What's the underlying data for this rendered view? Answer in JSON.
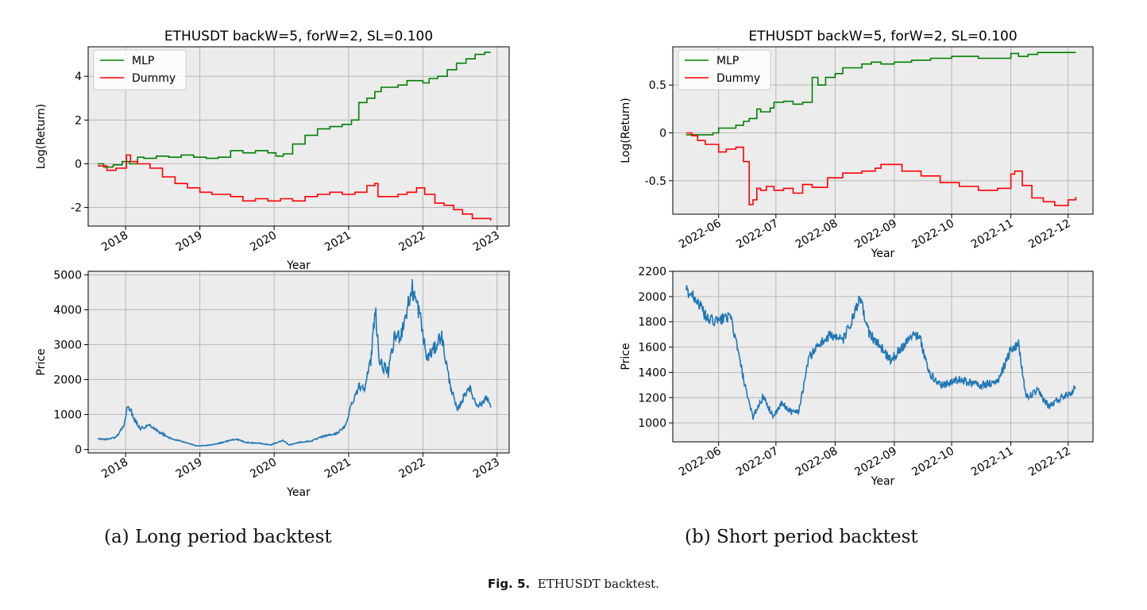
{
  "captions": {
    "a": "(a) Long period backtest",
    "b": "(b) Short period backtest",
    "fig_label": "Fig. 5.",
    "fig_text": "ETHUSDT backtest."
  },
  "colors": {
    "mlp": "#008000",
    "dummy": "#ff0000",
    "price": "#1f77b4",
    "plot_bg": "#ececec",
    "grid": "#b0b0b0"
  },
  "chart_data": [
    {
      "id": "long-return",
      "type": "line",
      "title": "ETHUSDT backW=5, forW=2, SL=0.100",
      "xlabel": "Year",
      "ylabel": "Log(Return)",
      "x_type": "date",
      "xlim": [
        "2017-07-01",
        "2023-03-01"
      ],
      "ylim": [
        -2.85,
        5.35
      ],
      "xticks": [
        [
          "2018-01-01",
          "2018"
        ],
        [
          "2019-01-01",
          "2019"
        ],
        [
          "2020-01-01",
          "2020"
        ],
        [
          "2021-01-01",
          "2021"
        ],
        [
          "2022-01-01",
          "2022"
        ],
        [
          "2023-01-01",
          "2023"
        ]
      ],
      "yticks": [
        -2,
        0,
        2,
        4
      ],
      "grid": true,
      "legend": "top-left",
      "step": true,
      "series": [
        {
          "name": "MLP",
          "color": "#008000",
          "x": [
            "2017-08-17",
            "2017-09-15",
            "2017-11-01",
            "2017-12-15",
            "2018-01-20",
            "2018-03-01",
            "2018-04-01",
            "2018-06-01",
            "2018-08-01",
            "2018-10-01",
            "2018-12-01",
            "2019-02-01",
            "2019-04-01",
            "2019-06-01",
            "2019-08-01",
            "2019-10-01",
            "2019-12-01",
            "2020-01-10",
            "2020-02-15",
            "2020-04-01",
            "2020-06-01",
            "2020-08-01",
            "2020-10-01",
            "2020-12-01",
            "2021-01-15",
            "2021-02-20",
            "2021-04-01",
            "2021-05-10",
            "2021-06-10",
            "2021-07-15",
            "2021-09-01",
            "2021-10-15",
            "2021-12-01",
            "2022-01-01",
            "2022-02-01",
            "2022-03-15",
            "2022-05-01",
            "2022-06-15",
            "2022-08-01",
            "2022-09-15",
            "2022-11-01",
            "2022-11-30"
          ],
          "values": [
            0.0,
            -0.15,
            -0.05,
            0.1,
            0.0,
            0.3,
            0.25,
            0.35,
            0.3,
            0.4,
            0.3,
            0.25,
            0.3,
            0.6,
            0.5,
            0.6,
            0.5,
            0.35,
            0.45,
            0.9,
            1.3,
            1.6,
            1.7,
            1.8,
            2.0,
            2.8,
            3.0,
            3.3,
            3.5,
            3.5,
            3.6,
            3.8,
            3.8,
            3.7,
            3.9,
            4.0,
            4.3,
            4.6,
            4.8,
            5.0,
            5.1,
            5.1
          ]
        },
        {
          "name": "Dummy",
          "color": "#ff0000",
          "x": [
            "2017-08-17",
            "2017-10-01",
            "2017-11-15",
            "2018-01-05",
            "2018-01-25",
            "2018-03-01",
            "2018-05-01",
            "2018-07-01",
            "2018-09-01",
            "2018-11-01",
            "2019-01-01",
            "2019-03-01",
            "2019-06-01",
            "2019-08-01",
            "2019-10-01",
            "2019-12-01",
            "2020-02-01",
            "2020-04-01",
            "2020-06-01",
            "2020-08-01",
            "2020-10-01",
            "2020-12-01",
            "2021-02-01",
            "2021-04-01",
            "2021-05-10",
            "2021-05-25",
            "2021-07-15",
            "2021-09-01",
            "2021-10-15",
            "2021-12-01",
            "2022-01-10",
            "2022-03-01",
            "2022-04-15",
            "2022-06-01",
            "2022-07-15",
            "2022-09-01",
            "2022-10-15",
            "2022-11-30"
          ],
          "values": [
            -0.1,
            -0.3,
            -0.2,
            0.4,
            0.1,
            0.0,
            -0.2,
            -0.6,
            -0.9,
            -1.1,
            -1.3,
            -1.4,
            -1.5,
            -1.7,
            -1.6,
            -1.7,
            -1.6,
            -1.7,
            -1.5,
            -1.4,
            -1.3,
            -1.4,
            -1.3,
            -1.0,
            -0.9,
            -1.5,
            -1.5,
            -1.4,
            -1.3,
            -1.1,
            -1.4,
            -1.8,
            -1.9,
            -2.1,
            -2.3,
            -2.5,
            -2.5,
            -2.6
          ]
        }
      ]
    },
    {
      "id": "long-price",
      "type": "line",
      "title": "",
      "xlabel": "Year",
      "ylabel": "Price",
      "x_type": "date",
      "xlim": [
        "2017-07-01",
        "2023-03-01"
      ],
      "ylim": [
        -100,
        5100
      ],
      "xticks": [
        [
          "2018-01-01",
          "2018"
        ],
        [
          "2019-01-01",
          "2019"
        ],
        [
          "2020-01-01",
          "2020"
        ],
        [
          "2021-01-01",
          "2021"
        ],
        [
          "2022-01-01",
          "2022"
        ],
        [
          "2023-01-01",
          "2023"
        ]
      ],
      "yticks": [
        0,
        1000,
        2000,
        3000,
        4000,
        5000
      ],
      "grid": true,
      "noise": 0.07,
      "series": [
        {
          "name": "",
          "color": "#1f77b4",
          "x": [
            "2017-08-17",
            "2017-10-01",
            "2017-11-15",
            "2017-12-25",
            "2018-01-13",
            "2018-02-10",
            "2018-03-15",
            "2018-05-01",
            "2018-06-15",
            "2018-08-15",
            "2018-10-15",
            "2018-12-15",
            "2019-02-01",
            "2019-04-01",
            "2019-06-25",
            "2019-08-15",
            "2019-10-15",
            "2019-12-15",
            "2020-02-15",
            "2020-03-15",
            "2020-05-01",
            "2020-07-01",
            "2020-09-01",
            "2020-11-01",
            "2020-12-15",
            "2021-01-15",
            "2021-02-20",
            "2021-03-20",
            "2021-04-20",
            "2021-05-12",
            "2021-06-01",
            "2021-07-15",
            "2021-08-15",
            "2021-09-15",
            "2021-11-10",
            "2021-12-15",
            "2022-01-20",
            "2022-03-01",
            "2022-04-01",
            "2022-05-10",
            "2022-06-18",
            "2022-07-20",
            "2022-08-15",
            "2022-09-20",
            "2022-10-20",
            "2022-11-10",
            "2022-11-30"
          ],
          "values": [
            300,
            290,
            350,
            700,
            1300,
            900,
            600,
            700,
            500,
            300,
            220,
            100,
            110,
            170,
            300,
            200,
            180,
            130,
            260,
            130,
            200,
            240,
            380,
            450,
            650,
            1300,
            1800,
            1800,
            2500,
            4100,
            2500,
            2200,
            3200,
            3300,
            4600,
            3900,
            2600,
            2900,
            3300,
            2000,
            1100,
            1500,
            1800,
            1300,
            1300,
            1550,
            1200
          ]
        }
      ]
    },
    {
      "id": "short-return",
      "type": "line",
      "title": "ETHUSDT backW=5, forW=2, SL=0.100",
      "xlabel": "Year",
      "ylabel": "Log(Return)",
      "x_type": "date",
      "xlim": [
        "2022-05-08",
        "2022-12-14"
      ],
      "ylim": [
        -0.85,
        0.9
      ],
      "xticks": [
        [
          "2022-06-01",
          "2022-06"
        ],
        [
          "2022-07-01",
          "2022-07"
        ],
        [
          "2022-08-01",
          "2022-08"
        ],
        [
          "2022-09-01",
          "2022-09"
        ],
        [
          "2022-10-01",
          "2022-10"
        ],
        [
          "2022-11-01",
          "2022-11"
        ],
        [
          "2022-12-01",
          "2022-12"
        ]
      ],
      "yticks": [
        -0.5,
        0.0,
        0.5
      ],
      "grid": true,
      "legend": "top-left",
      "step": true,
      "series": [
        {
          "name": "MLP",
          "color": "#008000",
          "x": [
            "2022-05-15",
            "2022-05-22",
            "2022-05-29",
            "2022-06-01",
            "2022-06-05",
            "2022-06-10",
            "2022-06-14",
            "2022-06-17",
            "2022-06-21",
            "2022-06-23",
            "2022-06-28",
            "2022-06-30",
            "2022-07-05",
            "2022-07-10",
            "2022-07-15",
            "2022-07-18",
            "2022-07-20",
            "2022-07-23",
            "2022-07-27",
            "2022-08-01",
            "2022-08-05",
            "2022-08-10",
            "2022-08-15",
            "2022-08-20",
            "2022-08-25",
            "2022-09-01",
            "2022-09-10",
            "2022-09-20",
            "2022-10-01",
            "2022-10-15",
            "2022-11-01",
            "2022-11-05",
            "2022-11-10",
            "2022-11-15",
            "2022-12-05"
          ],
          "values": [
            -0.02,
            -0.02,
            0.0,
            0.05,
            0.05,
            0.08,
            0.12,
            0.15,
            0.25,
            0.22,
            0.26,
            0.32,
            0.33,
            0.3,
            0.32,
            0.32,
            0.58,
            0.5,
            0.58,
            0.62,
            0.68,
            0.68,
            0.72,
            0.74,
            0.72,
            0.74,
            0.76,
            0.78,
            0.8,
            0.78,
            0.83,
            0.8,
            0.82,
            0.84,
            0.84
          ]
        },
        {
          "name": "Dummy",
          "color": "#ff0000",
          "x": [
            "2022-05-15",
            "2022-05-18",
            "2022-05-21",
            "2022-05-25",
            "2022-06-01",
            "2022-06-05",
            "2022-06-10",
            "2022-06-14",
            "2022-06-17",
            "2022-06-19",
            "2022-06-21",
            "2022-06-23",
            "2022-06-26",
            "2022-06-30",
            "2022-07-05",
            "2022-07-10",
            "2022-07-15",
            "2022-07-20",
            "2022-07-28",
            "2022-08-05",
            "2022-08-15",
            "2022-08-22",
            "2022-08-25",
            "2022-09-05",
            "2022-09-15",
            "2022-09-25",
            "2022-10-05",
            "2022-10-15",
            "2022-10-25",
            "2022-11-01",
            "2022-11-03",
            "2022-11-07",
            "2022-11-12",
            "2022-11-18",
            "2022-11-24",
            "2022-12-01",
            "2022-12-05"
          ],
          "values": [
            0.0,
            -0.03,
            -0.08,
            -0.12,
            -0.2,
            -0.17,
            -0.15,
            -0.3,
            -0.75,
            -0.7,
            -0.58,
            -0.6,
            -0.56,
            -0.6,
            -0.58,
            -0.63,
            -0.54,
            -0.57,
            -0.47,
            -0.42,
            -0.4,
            -0.37,
            -0.33,
            -0.4,
            -0.45,
            -0.52,
            -0.56,
            -0.6,
            -0.58,
            -0.43,
            -0.4,
            -0.55,
            -0.68,
            -0.72,
            -0.76,
            -0.7,
            -0.67
          ]
        }
      ]
    },
    {
      "id": "short-price",
      "type": "line",
      "title": "",
      "xlabel": "Year",
      "ylabel": "Price",
      "x_type": "date",
      "xlim": [
        "2022-05-08",
        "2022-12-14"
      ],
      "ylim": [
        850,
        2200
      ],
      "xticks": [
        [
          "2022-06-01",
          "2022-06"
        ],
        [
          "2022-07-01",
          "2022-07"
        ],
        [
          "2022-08-01",
          "2022-08"
        ],
        [
          "2022-09-01",
          "2022-09"
        ],
        [
          "2022-10-01",
          "2022-10"
        ],
        [
          "2022-11-01",
          "2022-11"
        ],
        [
          "2022-12-01",
          "2022-12"
        ]
      ],
      "yticks": [
        1000,
        1200,
        1400,
        1600,
        1800,
        2000,
        2200
      ],
      "grid": true,
      "noise": 0.025,
      "series": [
        {
          "name": "",
          "color": "#1f77b4",
          "x": [
            "2022-05-15",
            "2022-05-20",
            "2022-05-26",
            "2022-06-01",
            "2022-06-05",
            "2022-06-08",
            "2022-06-12",
            "2022-06-16",
            "2022-06-19",
            "2022-06-24",
            "2022-06-30",
            "2022-07-04",
            "2022-07-10",
            "2022-07-13",
            "2022-07-18",
            "2022-07-22",
            "2022-07-30",
            "2022-08-05",
            "2022-08-10",
            "2022-08-14",
            "2022-08-19",
            "2022-08-25",
            "2022-08-30",
            "2022-09-05",
            "2022-09-10",
            "2022-09-14",
            "2022-09-19",
            "2022-09-25",
            "2022-10-05",
            "2022-10-15",
            "2022-10-25",
            "2022-11-01",
            "2022-11-05",
            "2022-11-09",
            "2022-11-15",
            "2022-11-21",
            "2022-11-27",
            "2022-12-05"
          ],
          "values": [
            2050,
            1990,
            1820,
            1800,
            1850,
            1800,
            1500,
            1200,
            1050,
            1200,
            1050,
            1150,
            1080,
            1100,
            1500,
            1600,
            1700,
            1650,
            1820,
            1980,
            1700,
            1600,
            1500,
            1600,
            1700,
            1700,
            1400,
            1300,
            1340,
            1300,
            1320,
            1580,
            1620,
            1200,
            1250,
            1130,
            1200,
            1270
          ]
        }
      ]
    }
  ]
}
